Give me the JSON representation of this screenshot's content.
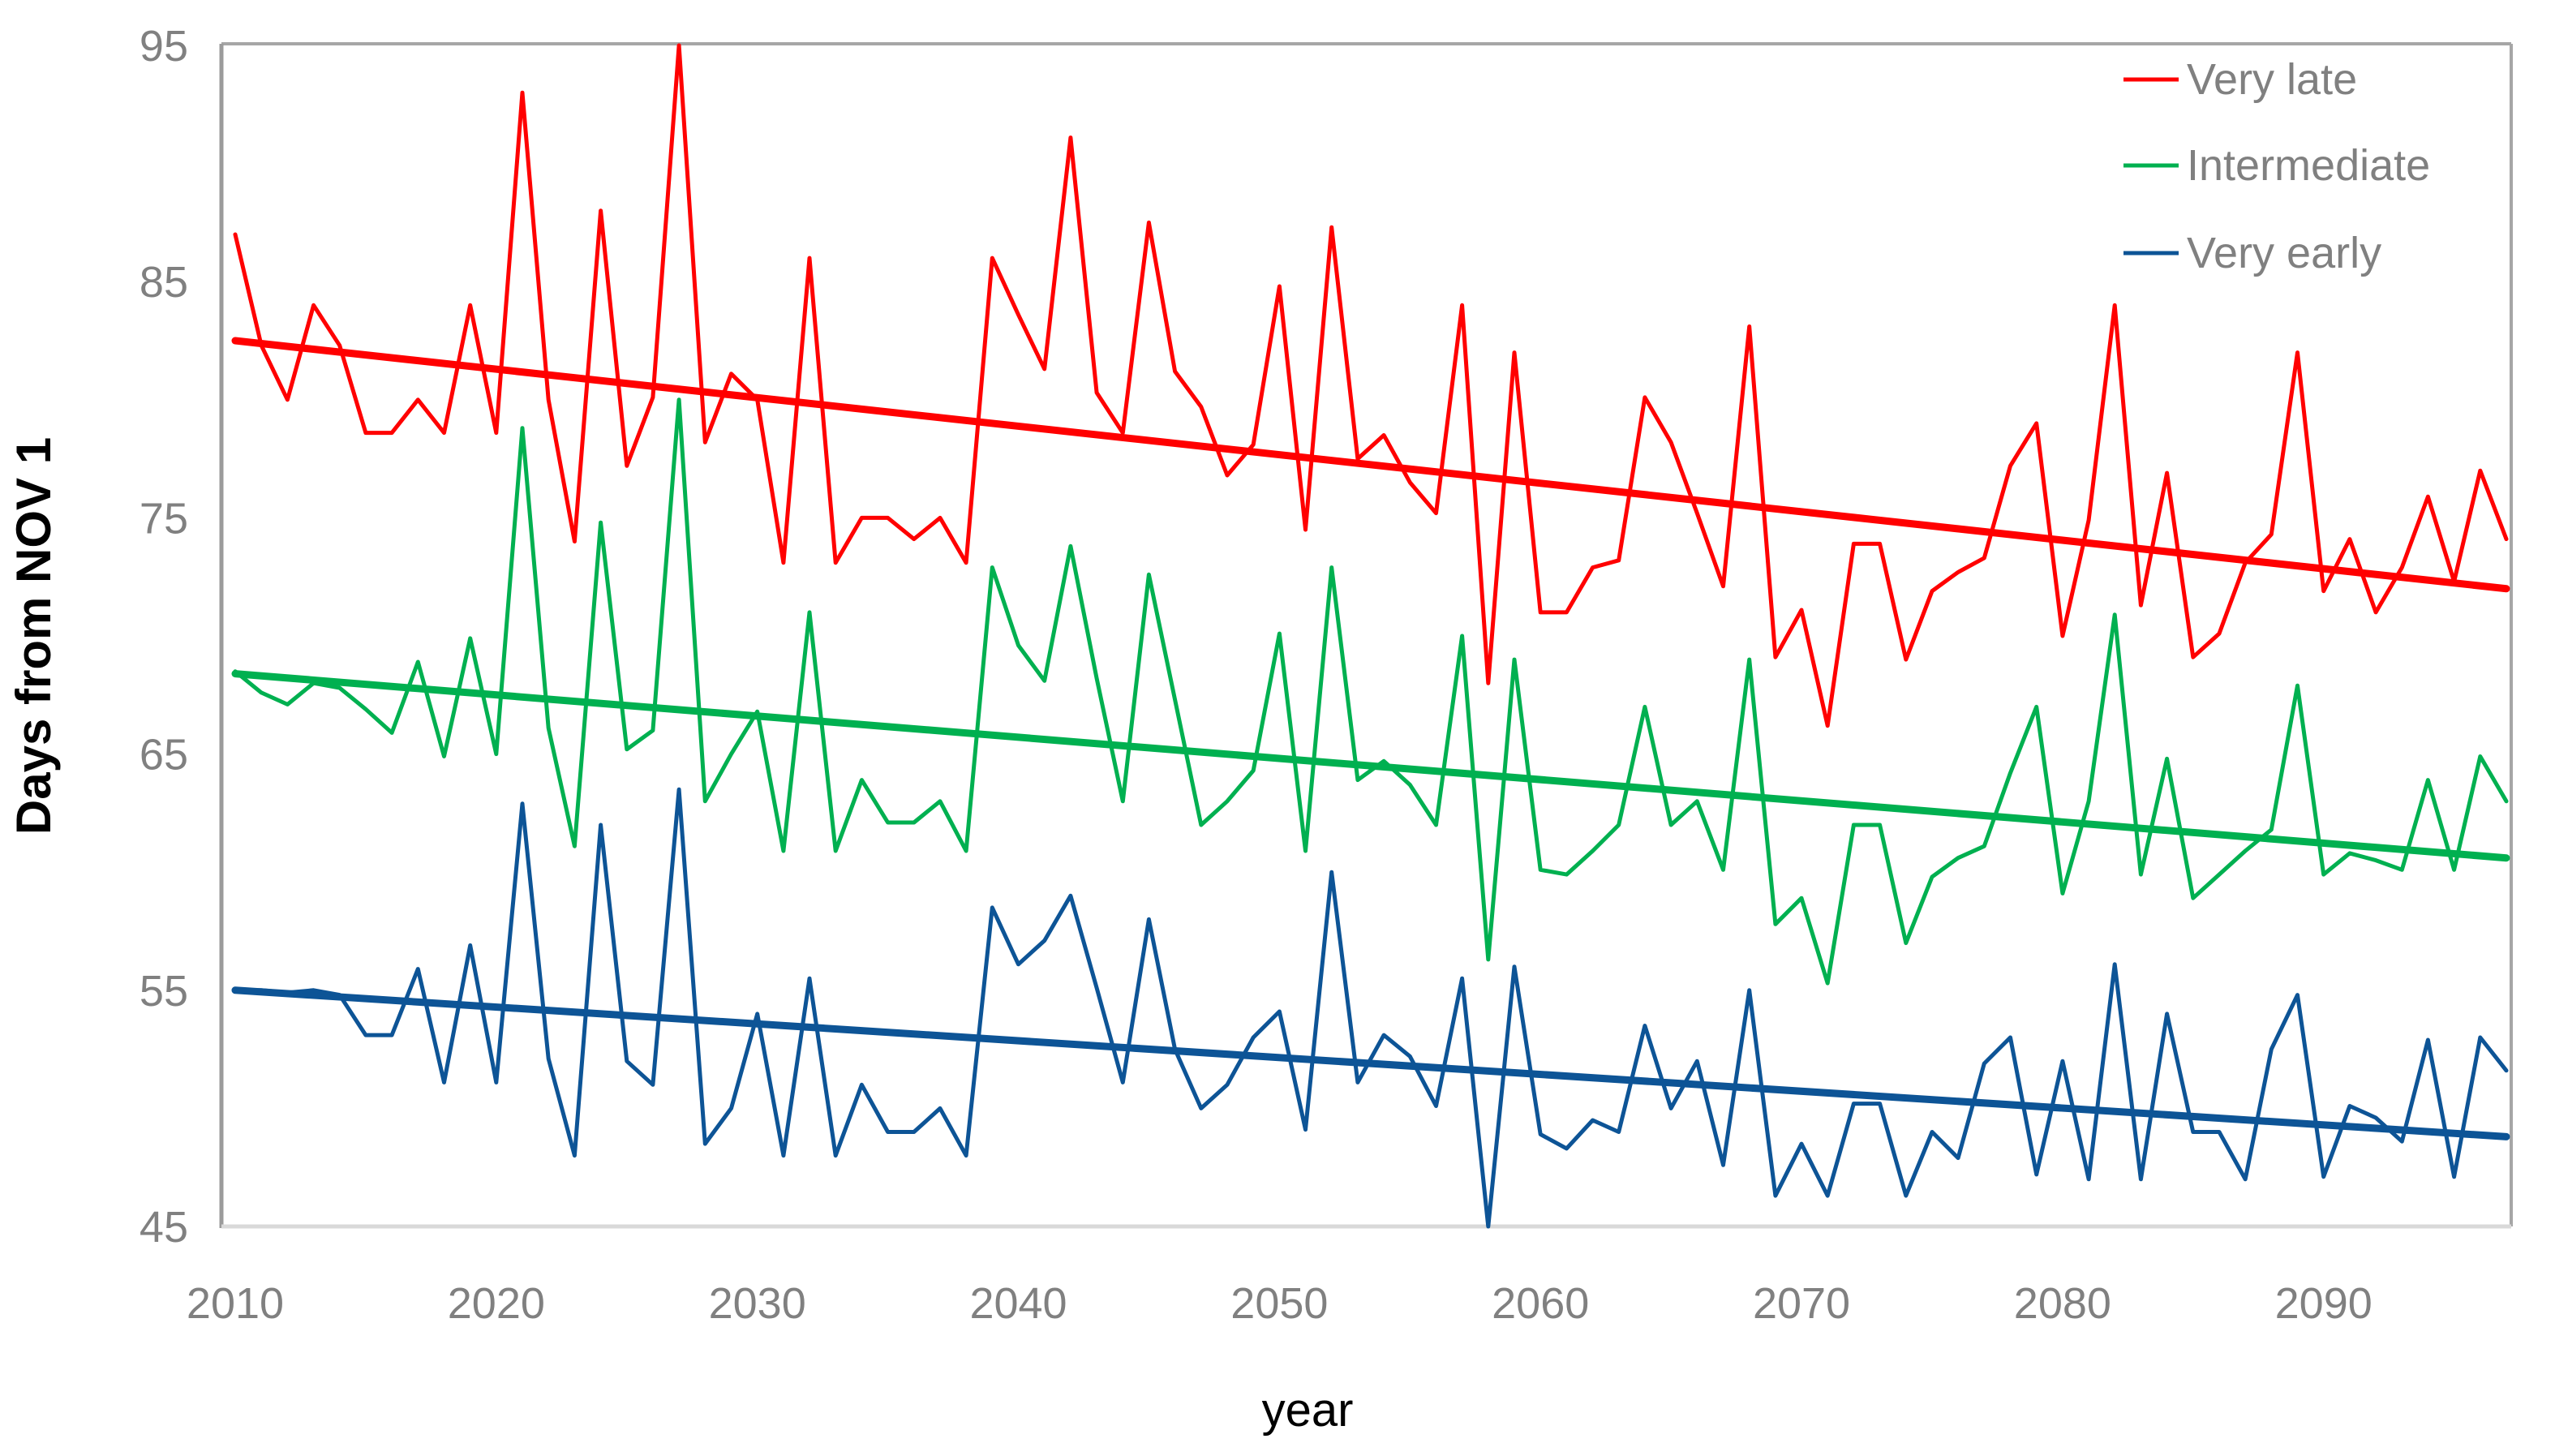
{
  "chart_data": {
    "type": "line",
    "title": "",
    "xlabel": "year",
    "ylabel": "Days from NOV 1",
    "xlim": [
      2010,
      2097
    ],
    "ylim": [
      45,
      95
    ],
    "x_ticks": [
      2010,
      2020,
      2030,
      2040,
      2050,
      2060,
      2070,
      2080,
      2090
    ],
    "y_ticks": [
      95,
      85,
      75,
      65,
      55,
      45
    ],
    "grid": false,
    "legend_position": "top-right",
    "background_color": "#FFFFFF",
    "axis_line_color": "#9B9B9B",
    "bottom_axis_color": "#D9D9D9",
    "border_color": "#A6A6A6",
    "tick_label_color": "#808080",
    "legend_text_color": "#808080",
    "years": [
      2010,
      2011,
      2012,
      2013,
      2014,
      2015,
      2016,
      2017,
      2018,
      2019,
      2020,
      2021,
      2022,
      2023,
      2024,
      2025,
      2026,
      2027,
      2028,
      2029,
      2030,
      2031,
      2032,
      2033,
      2034,
      2035,
      2036,
      2037,
      2038,
      2039,
      2040,
      2041,
      2042,
      2043,
      2044,
      2045,
      2046,
      2047,
      2048,
      2049,
      2050,
      2051,
      2052,
      2053,
      2054,
      2055,
      2056,
      2057,
      2058,
      2059,
      2060,
      2061,
      2062,
      2063,
      2064,
      2065,
      2066,
      2067,
      2068,
      2069,
      2070,
      2071,
      2072,
      2073,
      2074,
      2075,
      2076,
      2077,
      2078,
      2079,
      2080,
      2081,
      2082,
      2083,
      2084,
      2085,
      2086,
      2087,
      2088,
      2089,
      2090,
      2091,
      2092,
      2093,
      2094,
      2095,
      2096,
      2097
    ],
    "series": [
      {
        "name": "Very late",
        "color": "#FF0000",
        "line_width": 5,
        "trend": {
          "start_year": 2010,
          "end_year": 2097,
          "start_value": 82.5,
          "end_value": 72.0,
          "width": 9
        },
        "values": [
          87,
          82.3,
          80,
          84,
          82.3,
          78.6,
          78.6,
          80,
          78.6,
          84,
          78.6,
          93,
          80,
          74,
          88,
          77.2,
          80.1,
          95,
          78.2,
          81.1,
          80,
          73.1,
          86,
          73.1,
          75,
          75,
          74.1,
          75,
          73.1,
          86,
          83.6,
          81.3,
          91.1,
          80.3,
          78.6,
          87.5,
          81.2,
          79.7,
          76.8,
          78.1,
          84.8,
          74.5,
          87.3,
          77.5,
          78.5,
          76.5,
          75.2,
          84,
          68,
          82,
          71,
          71,
          72.9,
          73.2,
          80.1,
          78.2,
          75.2,
          72.1,
          83.1,
          69.1,
          71.1,
          66.2,
          73.9,
          73.9,
          69,
          71.9,
          72.7,
          73.3,
          77.2,
          79,
          70,
          74.9,
          84,
          71.3,
          76.9,
          69.1,
          70.1,
          73.1,
          74.3,
          82,
          71.9,
          74.1,
          71,
          72.9,
          75.9,
          72.3,
          77,
          74.1
        ]
      },
      {
        "name": "Intermediate",
        "color": "#00B050",
        "line_width": 5,
        "trend": {
          "start_year": 2010,
          "end_year": 2097,
          "start_value": 68.4,
          "end_value": 60.6,
          "width": 9
        },
        "values": [
          68.5,
          67.6,
          67.1,
          68,
          67.8,
          66.9,
          65.9,
          68.9,
          64.9,
          69.9,
          65,
          78.8,
          66.1,
          61.1,
          74.8,
          65.2,
          66,
          80,
          63,
          65,
          66.8,
          60.9,
          71,
          60.9,
          63.9,
          62.1,
          62.1,
          63,
          60.9,
          72.9,
          69.6,
          68.1,
          73.8,
          68.2,
          63,
          72.6,
          67.3,
          62,
          63,
          64.3,
          70.1,
          60.9,
          72.9,
          63.9,
          64.7,
          63.7,
          62,
          70,
          56.3,
          69,
          60.1,
          59.9,
          60.9,
          62,
          67,
          62,
          63,
          60.1,
          69,
          57.8,
          58.9,
          55.3,
          62,
          62,
          57,
          59.8,
          60.6,
          61.1,
          64.2,
          67,
          59.1,
          63,
          70.9,
          59.9,
          64.8,
          58.9,
          59.9,
          60.9,
          61.8,
          67.9,
          59.9,
          60.8,
          60.5,
          60.1,
          63.9,
          60.1,
          64.9,
          63
        ]
      },
      {
        "name": "Very early",
        "color": "#0D5496",
        "line_width": 5,
        "trend": {
          "start_year": 2010,
          "end_year": 2097,
          "start_value": 55.0,
          "end_value": 48.8,
          "width": 9
        },
        "values": [
          55,
          55,
          54.9,
          55,
          54.8,
          53.1,
          53.1,
          55.9,
          51.1,
          56.9,
          51.1,
          62.9,
          52.1,
          48,
          62,
          52,
          51,
          63.5,
          48.5,
          50,
          54,
          48,
          55.5,
          48,
          51,
          49,
          49,
          50,
          48,
          58.5,
          56.1,
          57.1,
          59,
          55.1,
          51.1,
          58,
          52.5,
          50,
          51,
          53,
          54.1,
          49.1,
          60,
          51.1,
          53.1,
          52.2,
          50.1,
          55.5,
          45,
          56,
          48.9,
          48.3,
          49.5,
          49,
          53.5,
          50,
          52,
          47.6,
          55,
          46.3,
          48.5,
          46.3,
          50.2,
          50.2,
          46.3,
          49,
          47.9,
          51.9,
          53,
          47.2,
          52,
          47,
          56.1,
          47,
          54,
          49,
          49,
          47,
          52.5,
          54.8,
          47.1,
          50.1,
          49.6,
          48.6,
          52.9,
          47.1,
          53,
          51.6
        ]
      }
    ]
  },
  "layout_labels": {
    "y_axis_title": "Days from NOV 1",
    "x_axis_title": "year",
    "legend": [
      "Very late",
      "Intermediate",
      "Very early"
    ]
  }
}
